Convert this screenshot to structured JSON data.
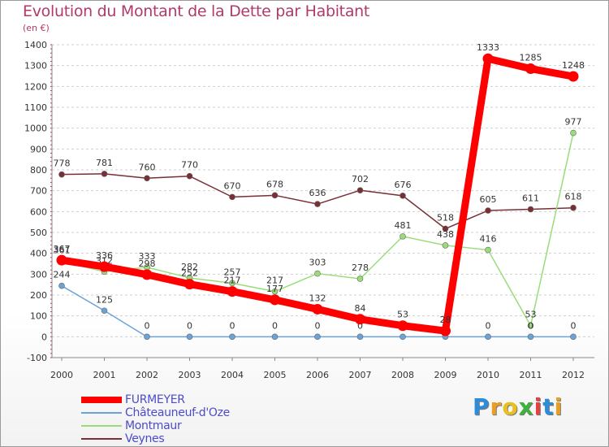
{
  "header": {
    "title": "Evolution du Montant de la Dette par Habitant",
    "subtitle": "(en €)"
  },
  "logo": {
    "letters": [
      "P",
      "r",
      "o",
      "x",
      "i",
      "t",
      "i"
    ],
    "colors": [
      "#2e8bd8",
      "#e8a020",
      "#e8c020",
      "#3cb43c",
      "#e84040",
      "#2e8bd8",
      "#e8a020"
    ]
  },
  "chart_data": {
    "type": "line",
    "title": "Evolution du Montant de la Dette par Habitant",
    "ylabel": "(en €)",
    "x": [
      "2000",
      "2001",
      "2002",
      "2003",
      "2004",
      "2005",
      "2006",
      "2007",
      "2008",
      "2009",
      "2010",
      "2011",
      "2012"
    ],
    "ylim": [
      -100,
      1400
    ],
    "yticks": [
      -100,
      0,
      100,
      200,
      300,
      400,
      500,
      600,
      700,
      800,
      900,
      1000,
      1100,
      1200,
      1300,
      1400
    ],
    "grid": "horizontal dashed",
    "legend_position": "bottom-left",
    "series": [
      {
        "name": "Veynes",
        "color": "#7a2e35",
        "values": [
          778,
          781,
          760,
          770,
          670,
          678,
          636,
          702,
          676,
          518,
          605,
          611,
          618
        ]
      },
      {
        "name": "Montmaur",
        "color": "#99dd7a",
        "values": [
          361,
          312,
          333,
          282,
          257,
          217,
          303,
          278,
          481,
          438,
          416,
          53,
          977
        ]
      },
      {
        "name": "Châteauneuf-d'Oze",
        "color": "#6aa3d8",
        "values": [
          244,
          125,
          0,
          0,
          0,
          0,
          0,
          0,
          0,
          0,
          0,
          0,
          0
        ]
      },
      {
        "name": "FURMEYER",
        "color": "#ff0000",
        "values": [
          367,
          336,
          298,
          252,
          217,
          177,
          132,
          84,
          53,
          28,
          1333,
          1285,
          1248
        ]
      }
    ]
  }
}
